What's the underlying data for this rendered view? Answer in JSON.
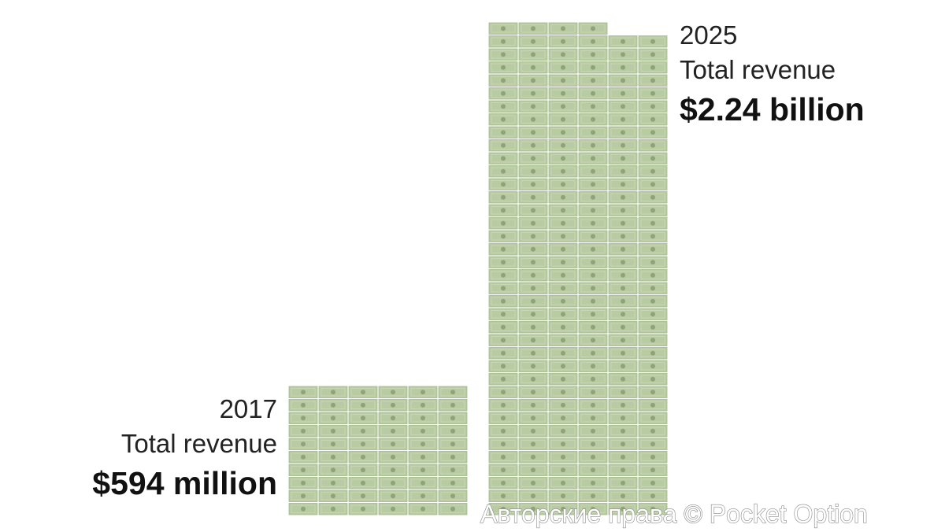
{
  "chart_data": {
    "type": "pictograph",
    "categories": [
      "2017",
      "2025"
    ],
    "label": "Total revenue",
    "values": [
      594,
      2240
    ],
    "value_labels": [
      "$594 million",
      "$2.24 billion"
    ],
    "color": "#b9cba3"
  },
  "watermark": "Авторские права © Pocket Option"
}
